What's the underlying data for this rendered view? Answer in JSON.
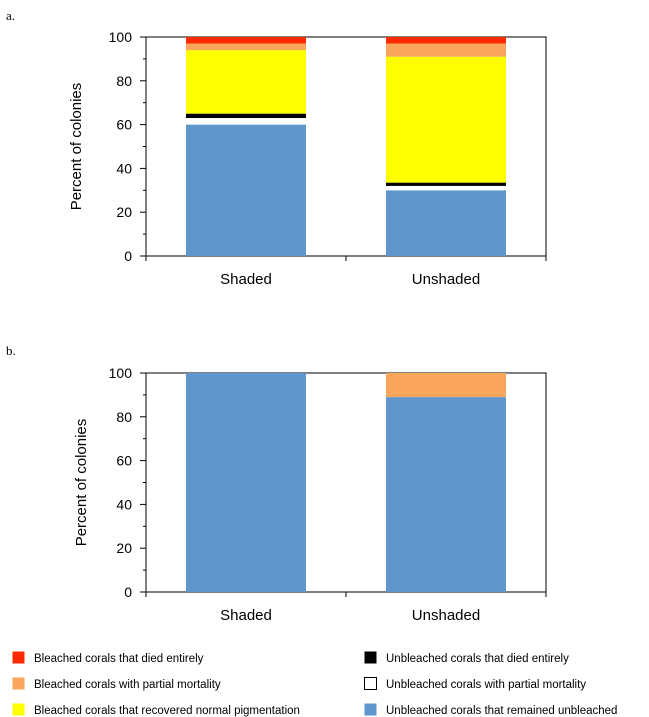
{
  "colors": {
    "bleached_died": "#ff2a00",
    "bleached_partial": "#f9a55b",
    "bleached_recovered": "#ffff00",
    "unbleached_died": "#000000",
    "unbleached_partial": "#ffffff",
    "unbleached_remained": "#5f96cd"
  },
  "legend": [
    {
      "key": "bleached_died",
      "label": "Bleached corals that died entirely"
    },
    {
      "key": "bleached_partial",
      "label": "Bleached corals with partial mortality"
    },
    {
      "key": "bleached_recovered",
      "label": "Bleached corals that recovered normal pigmentation"
    },
    {
      "key": "unbleached_died",
      "label": "Unbleached corals that died entirely"
    },
    {
      "key": "unbleached_partial",
      "label": "Unbleached corals with partial mortality"
    },
    {
      "key": "unbleached_remained",
      "label": "Unbleached corals that remained unbleached"
    }
  ],
  "chart_data": [
    {
      "panel": "a.",
      "type": "bar",
      "stacked": true,
      "categories": [
        "Shaded",
        "Unshaded"
      ],
      "ylabel": "Percent of colonies",
      "ylim": [
        0,
        100
      ],
      "yticks": [
        "0",
        "20",
        "40",
        "60",
        "80",
        "100"
      ],
      "series": [
        {
          "key": "unbleached_remained",
          "values": [
            60,
            30
          ]
        },
        {
          "key": "unbleached_partial",
          "values": [
            3,
            2
          ]
        },
        {
          "key": "unbleached_died",
          "values": [
            2,
            1.5
          ]
        },
        {
          "key": "bleached_recovered",
          "values": [
            29,
            57.5
          ]
        },
        {
          "key": "bleached_partial",
          "values": [
            3,
            6
          ]
        },
        {
          "key": "bleached_died",
          "values": [
            3,
            3
          ]
        }
      ]
    },
    {
      "panel": "b.",
      "type": "bar",
      "stacked": true,
      "categories": [
        "Shaded",
        "Unshaded"
      ],
      "ylabel": "Percent of colonies",
      "ylim": [
        0,
        100
      ],
      "yticks": [
        "0",
        "20",
        "40",
        "60",
        "80",
        "100"
      ],
      "series": [
        {
          "key": "unbleached_remained",
          "values": [
            100,
            89
          ]
        },
        {
          "key": "bleached_partial",
          "values": [
            0,
            11
          ]
        }
      ]
    }
  ]
}
